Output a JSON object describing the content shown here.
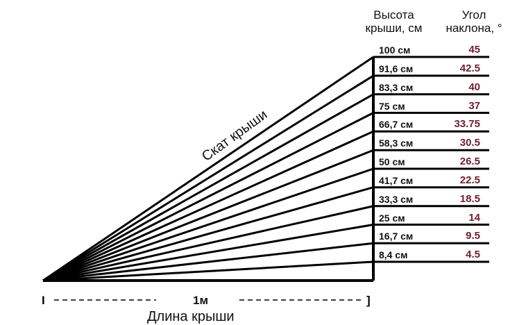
{
  "headers": {
    "height_line1": "Высота",
    "height_line2": "крыши, см",
    "angle_line1": "Угол",
    "angle_line2": "наклона, °"
  },
  "rows": [
    {
      "height": "100 см",
      "angle": "45",
      "height_cm": 100
    },
    {
      "height": "91,6 см",
      "angle": "42.5",
      "height_cm": 91.6
    },
    {
      "height": "83,3 см",
      "angle": "40",
      "height_cm": 83.3
    },
    {
      "height": "75 см",
      "angle": "37",
      "height_cm": 75
    },
    {
      "height": "66,7 см",
      "angle": "33.75",
      "height_cm": 66.7
    },
    {
      "height": "58,3 см",
      "angle": "30.5",
      "height_cm": 58.3
    },
    {
      "height": "50 см",
      "angle": "26.5",
      "height_cm": 50
    },
    {
      "height": "41,7 см",
      "angle": "22.5",
      "height_cm": 41.7
    },
    {
      "height": "33,3 см",
      "angle": "18.5",
      "height_cm": 33.3
    },
    {
      "height": "25 см",
      "angle": "14",
      "height_cm": 25
    },
    {
      "height": "16,7 см",
      "angle": "9.5",
      "height_cm": 16.7
    },
    {
      "height": "8,4 см",
      "angle": "4.5",
      "height_cm": 8.4
    }
  ],
  "labels": {
    "slope": "Скат крыши",
    "length": "Длина крыши",
    "dimension": "1м",
    "dim_left_mark": "I",
    "dim_right_mark": "]"
  }
}
